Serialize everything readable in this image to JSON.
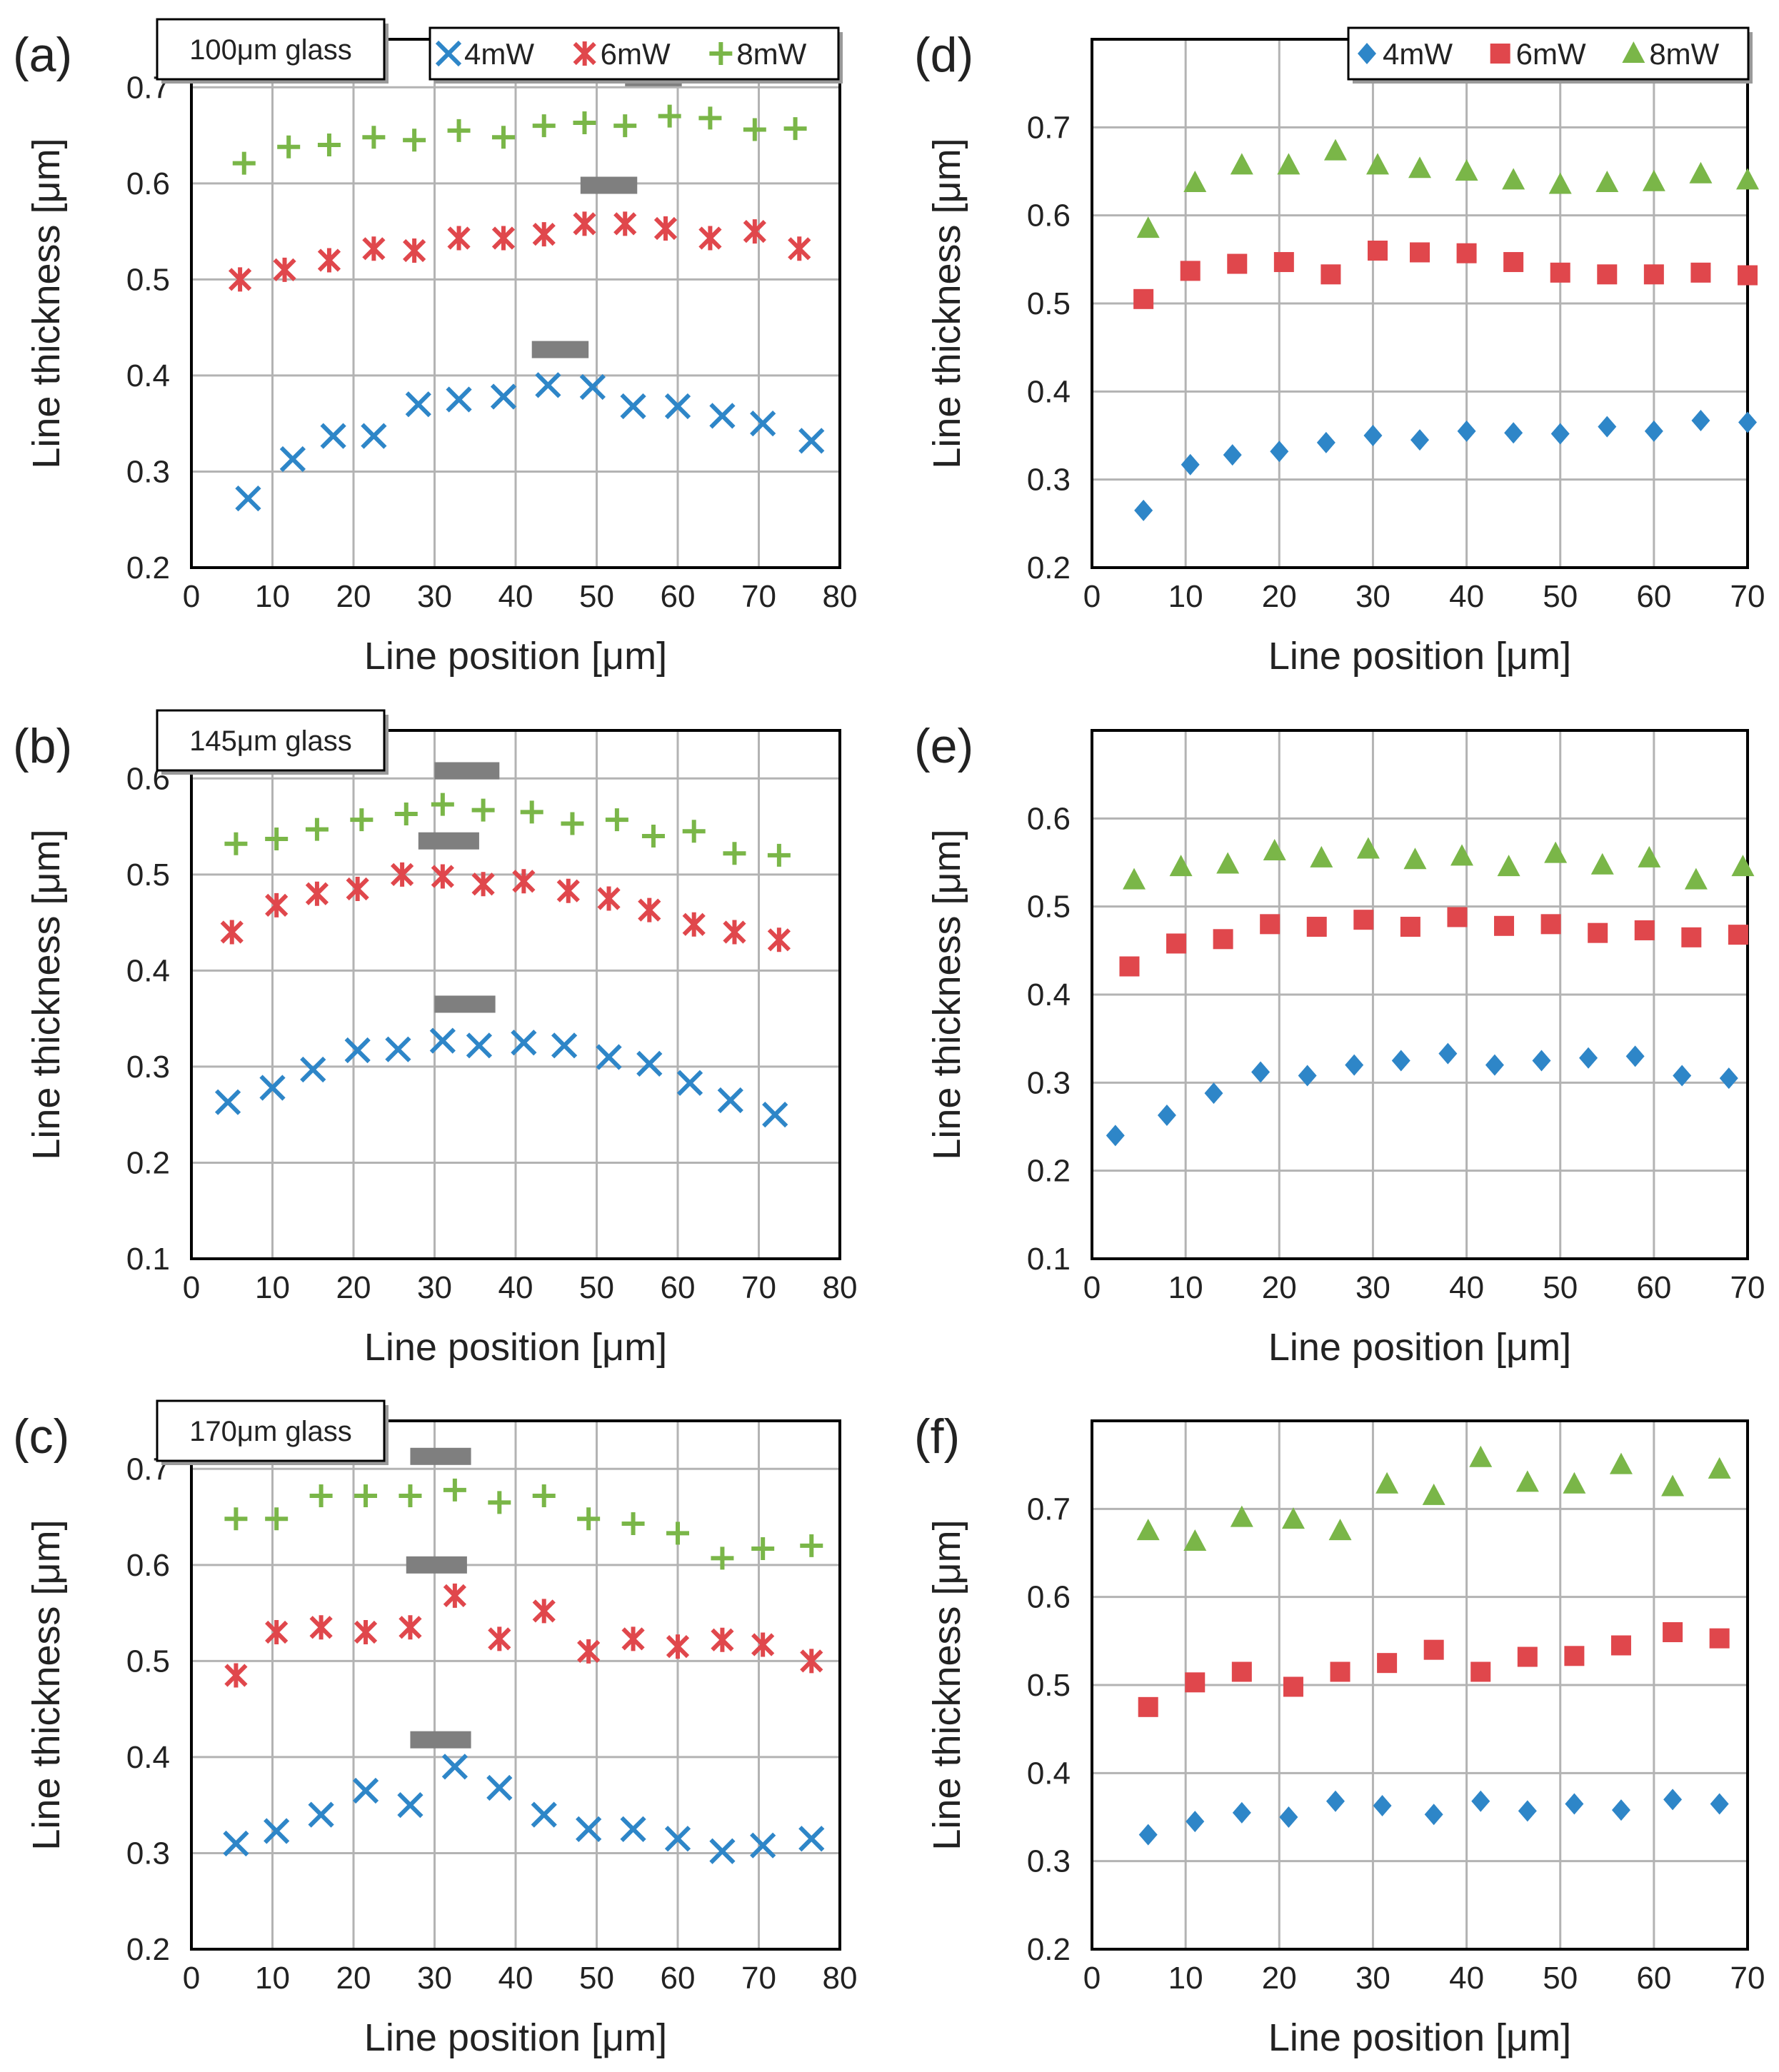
{
  "figure": {
    "colors": {
      "4mW": "#2e86c8",
      "6mW": "#e0474c",
      "8mW": "#7ab648",
      "bar": "#7f7f7f",
      "grid": "#b3b3b3",
      "frame": "#000000"
    },
    "icons": {
      "x_series": "x-marker",
      "star_series": "asterisk-marker",
      "plus_series": "plus-marker",
      "diamond_series": "diamond-marker",
      "square_series": "square-marker",
      "triangle_series": "triangle-marker"
    }
  },
  "chart_data": [
    {
      "id": "a",
      "label": "(a)",
      "type": "scatter",
      "annotation": "100μm glass",
      "xlabel": "Line position [μm]",
      "ylabel": "Line thickness [μm]",
      "xlim": [
        0,
        80
      ],
      "ylim": [
        0.2,
        0.75
      ],
      "grid": true,
      "xticks": [
        0,
        10,
        20,
        30,
        40,
        50,
        60,
        70,
        80
      ],
      "yticks": [
        0.2,
        0.3,
        0.4,
        0.5,
        0.6,
        0.7
      ],
      "xtick_labels": [
        "0",
        "10",
        "20",
        "30",
        "40",
        "50",
        "60",
        "70",
        "80"
      ],
      "ytick_labels": [
        "0.2",
        "0.3",
        "0.4",
        "0.5",
        "0.6",
        "0.7"
      ],
      "legend": {
        "entries": [
          "4mW",
          "6mW",
          "8mW"
        ],
        "position": "top-right"
      },
      "series": [
        {
          "name": "4mW",
          "marker": "x",
          "x": [
            7,
            12.5,
            17.5,
            22.5,
            28,
            33,
            38.5,
            44,
            49.5,
            54.5,
            60,
            65.5,
            70.5,
            76.5
          ],
          "y": [
            0.272,
            0.313,
            0.337,
            0.337,
            0.37,
            0.375,
            0.378,
            0.39,
            0.388,
            0.368,
            0.368,
            0.358,
            0.35,
            0.332
          ]
        },
        {
          "name": "6mW",
          "marker": "star",
          "x": [
            6,
            11.5,
            17,
            22.5,
            27.5,
            33,
            38.5,
            43.5,
            48.5,
            53.5,
            58.5,
            64,
            69.5,
            75
          ],
          "y": [
            0.5,
            0.51,
            0.52,
            0.532,
            0.53,
            0.543,
            0.543,
            0.547,
            0.558,
            0.558,
            0.553,
            0.543,
            0.55,
            0.532
          ]
        },
        {
          "name": "8mW",
          "marker": "plus",
          "x": [
            6.5,
            12,
            17,
            22.5,
            27.5,
            33,
            38.5,
            43.5,
            48.5,
            53.5,
            59,
            64,
            69.5,
            74.5
          ],
          "y": [
            0.621,
            0.638,
            0.64,
            0.648,
            0.645,
            0.655,
            0.648,
            0.66,
            0.663,
            0.66,
            0.67,
            0.668,
            0.656,
            0.657
          ]
        }
      ],
      "bars": [
        {
          "x0": 42,
          "x1": 49,
          "y": 0.427
        },
        {
          "x0": 48,
          "x1": 55,
          "y": 0.598
        },
        {
          "x0": 53.5,
          "x1": 60.5,
          "y": 0.71
        }
      ]
    },
    {
      "id": "b",
      "label": "(b)",
      "type": "scatter",
      "annotation": "145μm glass",
      "xlabel": "Line position [μm]",
      "ylabel": "Line thickness [μm]",
      "xlim": [
        0,
        80
      ],
      "ylim": [
        0.1,
        0.65
      ],
      "grid": true,
      "xticks": [
        0,
        10,
        20,
        30,
        40,
        50,
        60,
        70,
        80
      ],
      "yticks": [
        0.1,
        0.2,
        0.3,
        0.4,
        0.5,
        0.6
      ],
      "xtick_labels": [
        "0",
        "10",
        "20",
        "30",
        "40",
        "50",
        "60",
        "70",
        "80"
      ],
      "ytick_labels": [
        "0.1",
        "0.2",
        "0.3",
        "0.4",
        "0.5",
        "0.6"
      ],
      "series": [
        {
          "name": "4mW",
          "marker": "x",
          "x": [
            4.5,
            10,
            15,
            20.5,
            25.5,
            31,
            35.5,
            41,
            46,
            51.5,
            56.5,
            61.5,
            66.5,
            72
          ],
          "y": [
            0.263,
            0.278,
            0.297,
            0.317,
            0.318,
            0.327,
            0.322,
            0.325,
            0.322,
            0.31,
            0.303,
            0.283,
            0.265,
            0.25
          ]
        },
        {
          "name": "6mW",
          "marker": "star",
          "x": [
            5,
            10.5,
            15.5,
            20.5,
            26,
            31,
            36,
            41,
            46.5,
            51.5,
            56.5,
            62,
            67,
            72.5
          ],
          "y": [
            0.44,
            0.468,
            0.48,
            0.485,
            0.5,
            0.498,
            0.49,
            0.493,
            0.483,
            0.475,
            0.463,
            0.448,
            0.44,
            0.432
          ]
        },
        {
          "name": "8mW",
          "marker": "plus",
          "x": [
            5.5,
            10.5,
            15.5,
            21,
            26.5,
            31,
            36,
            42,
            47,
            52.5,
            57,
            62,
            67,
            72.5
          ],
          "y": [
            0.532,
            0.537,
            0.547,
            0.557,
            0.563,
            0.573,
            0.567,
            0.565,
            0.553,
            0.557,
            0.54,
            0.545,
            0.522,
            0.52
          ]
        }
      ],
      "bars": [
        {
          "x0": 30,
          "x1": 37.5,
          "y": 0.365
        },
        {
          "x0": 28,
          "x1": 35.5,
          "y": 0.535
        },
        {
          "x0": 30,
          "x1": 38,
          "y": 0.608
        }
      ]
    },
    {
      "id": "c",
      "label": "(c)",
      "type": "scatter",
      "annotation": "170μm glass",
      "xlabel": "Line position [μm]",
      "ylabel": "Line thickness [μm]",
      "xlim": [
        0,
        80
      ],
      "ylim": [
        0.2,
        0.75
      ],
      "grid": true,
      "xticks": [
        0,
        10,
        20,
        30,
        40,
        50,
        60,
        70,
        80
      ],
      "yticks": [
        0.2,
        0.3,
        0.4,
        0.5,
        0.6,
        0.7
      ],
      "xtick_labels": [
        "0",
        "10",
        "20",
        "30",
        "40",
        "50",
        "60",
        "70",
        "80"
      ],
      "ytick_labels": [
        "0.2",
        "0.3",
        "0.4",
        "0.5",
        "0.6",
        "0.7"
      ],
      "series": [
        {
          "name": "4mW",
          "marker": "x",
          "x": [
            5.5,
            10.5,
            16,
            21.5,
            27,
            32.5,
            38,
            43.5,
            49,
            54.5,
            60,
            65.5,
            70.5,
            76.5
          ],
          "y": [
            0.31,
            0.323,
            0.34,
            0.365,
            0.35,
            0.39,
            0.368,
            0.34,
            0.325,
            0.325,
            0.315,
            0.302,
            0.308,
            0.315
          ]
        },
        {
          "name": "6mW",
          "marker": "star",
          "x": [
            5.5,
            10.5,
            16,
            21.5,
            27,
            32.5,
            38,
            43.5,
            49,
            54.5,
            60,
            65.5,
            70.5,
            76.5
          ],
          "y": [
            0.485,
            0.53,
            0.535,
            0.53,
            0.535,
            0.568,
            0.523,
            0.552,
            0.51,
            0.523,
            0.515,
            0.522,
            0.517,
            0.5
          ]
        },
        {
          "name": "8mW",
          "marker": "plus",
          "x": [
            5.5,
            10.5,
            16,
            21.5,
            27,
            32.5,
            38,
            43.5,
            49,
            54.5,
            60,
            65.5,
            70.5,
            76.5
          ],
          "y": [
            0.648,
            0.648,
            0.672,
            0.672,
            0.672,
            0.678,
            0.665,
            0.672,
            0.648,
            0.643,
            0.633,
            0.607,
            0.617,
            0.62
          ]
        }
      ],
      "bars": [
        {
          "x0": 27,
          "x1": 34.5,
          "y": 0.418
        },
        {
          "x0": 26.5,
          "x1": 34,
          "y": 0.6
        },
        {
          "x0": 27,
          "x1": 34.5,
          "y": 0.713
        }
      ]
    },
    {
      "id": "d",
      "label": "(d)",
      "type": "scatter",
      "xlabel": "Line position [μm]",
      "ylabel": "Line thickness [μm]",
      "xlim": [
        0,
        70
      ],
      "ylim": [
        0.2,
        0.8
      ],
      "grid": true,
      "xticks": [
        0,
        10,
        20,
        30,
        40,
        50,
        60,
        70
      ],
      "yticks": [
        0.2,
        0.3,
        0.4,
        0.5,
        0.6,
        0.7
      ],
      "xtick_labels": [
        "0",
        "10",
        "20",
        "30",
        "40",
        "50",
        "60",
        "70"
      ],
      "ytick_labels": [
        "0.2",
        "0.3",
        "0.4",
        "0.5",
        "0.6",
        "0.7"
      ],
      "legend": {
        "entries": [
          "4mW",
          "6mW",
          "8mW"
        ],
        "position": "top-right"
      },
      "series": [
        {
          "name": "4mW",
          "marker": "diamond",
          "x": [
            5.5,
            10.5,
            15,
            20,
            25,
            30,
            35,
            40,
            45,
            50,
            55,
            60,
            65,
            70
          ],
          "y": [
            0.265,
            0.317,
            0.328,
            0.332,
            0.342,
            0.35,
            0.345,
            0.355,
            0.353,
            0.352,
            0.36,
            0.355,
            0.367,
            0.365
          ]
        },
        {
          "name": "6mW",
          "marker": "square",
          "x": [
            5.5,
            10.5,
            15.5,
            20.5,
            25.5,
            30.5,
            35,
            40,
            45,
            50,
            55,
            60,
            65,
            70
          ],
          "y": [
            0.505,
            0.537,
            0.545,
            0.547,
            0.533,
            0.56,
            0.558,
            0.557,
            0.547,
            0.535,
            0.533,
            0.533,
            0.535,
            0.532
          ]
        },
        {
          "name": "8mW",
          "marker": "triangle",
          "x": [
            6,
            11,
            16,
            21,
            26,
            30.5,
            35,
            40,
            45,
            50,
            55,
            60,
            65,
            70
          ],
          "y": [
            0.585,
            0.637,
            0.657,
            0.657,
            0.673,
            0.657,
            0.653,
            0.65,
            0.64,
            0.635,
            0.637,
            0.638,
            0.647,
            0.64
          ]
        }
      ]
    },
    {
      "id": "e",
      "label": "(e)",
      "type": "scatter",
      "xlabel": "Line position [μm]",
      "ylabel": "Line thickness [μm]",
      "xlim": [
        0,
        70
      ],
      "ylim": [
        0.1,
        0.7
      ],
      "grid": true,
      "xticks": [
        0,
        10,
        20,
        30,
        40,
        50,
        60,
        70
      ],
      "yticks": [
        0.1,
        0.2,
        0.3,
        0.4,
        0.5,
        0.6
      ],
      "xtick_labels": [
        "0",
        "10",
        "20",
        "30",
        "40",
        "50",
        "60",
        "70"
      ],
      "ytick_labels": [
        "0.1",
        "0.2",
        "0.3",
        "0.4",
        "0.5",
        "0.6"
      ],
      "series": [
        {
          "name": "4mW",
          "marker": "diamond",
          "x": [
            2.5,
            8,
            13,
            18,
            23,
            28,
            33,
            38,
            43,
            48,
            53,
            58,
            63,
            68
          ],
          "y": [
            0.24,
            0.263,
            0.288,
            0.312,
            0.308,
            0.32,
            0.325,
            0.333,
            0.32,
            0.325,
            0.328,
            0.33,
            0.308,
            0.305
          ]
        },
        {
          "name": "6mW",
          "marker": "square",
          "x": [
            4,
            9,
            14,
            19,
            24,
            29,
            34,
            39,
            44,
            49,
            54,
            59,
            64,
            69
          ],
          "y": [
            0.432,
            0.458,
            0.463,
            0.48,
            0.477,
            0.485,
            0.477,
            0.488,
            0.478,
            0.48,
            0.47,
            0.473,
            0.465,
            0.468
          ]
        },
        {
          "name": "8mW",
          "marker": "triangle",
          "x": [
            4.5,
            9.5,
            14.5,
            19.5,
            24.5,
            29.5,
            34.5,
            39.5,
            44.5,
            49.5,
            54.5,
            59.5,
            64.5,
            69.5
          ],
          "y": [
            0.53,
            0.545,
            0.548,
            0.563,
            0.555,
            0.565,
            0.553,
            0.557,
            0.545,
            0.56,
            0.547,
            0.555,
            0.53,
            0.545
          ]
        }
      ]
    },
    {
      "id": "f",
      "label": "(f)",
      "type": "scatter",
      "xlabel": "Line position [μm]",
      "ylabel": "Line thickness [μm]",
      "xlim": [
        0,
        70
      ],
      "ylim": [
        0.2,
        0.8
      ],
      "grid": true,
      "xticks": [
        0,
        10,
        20,
        30,
        40,
        50,
        60,
        70
      ],
      "yticks": [
        0.2,
        0.3,
        0.4,
        0.5,
        0.6,
        0.7
      ],
      "xtick_labels": [
        "0",
        "10",
        "20",
        "30",
        "40",
        "50",
        "60",
        "70"
      ],
      "ytick_labels": [
        "0.2",
        "0.3",
        "0.4",
        "0.5",
        "0.6",
        "0.7"
      ],
      "series": [
        {
          "name": "4mW",
          "marker": "diamond",
          "x": [
            6,
            11,
            16,
            21,
            26,
            31,
            36.5,
            41.5,
            46.5,
            51.5,
            56.5,
            62,
            67
          ],
          "y": [
            0.33,
            0.345,
            0.355,
            0.35,
            0.368,
            0.363,
            0.353,
            0.368,
            0.357,
            0.365,
            0.358,
            0.37,
            0.365
          ]
        },
        {
          "name": "6mW",
          "marker": "square",
          "x": [
            6,
            11,
            16,
            21.5,
            26.5,
            31.5,
            36.5,
            41.5,
            46.5,
            51.5,
            56.5,
            62,
            67
          ],
          "y": [
            0.475,
            0.503,
            0.515,
            0.498,
            0.515,
            0.525,
            0.54,
            0.515,
            0.532,
            0.533,
            0.545,
            0.56,
            0.553
          ]
        },
        {
          "name": "8mW",
          "marker": "triangle",
          "x": [
            6,
            11,
            16,
            21.5,
            26.5,
            31.5,
            36.5,
            41.5,
            46.5,
            51.5,
            56.5,
            62,
            67
          ],
          "y": [
            0.675,
            0.663,
            0.69,
            0.688,
            0.675,
            0.728,
            0.715,
            0.758,
            0.73,
            0.728,
            0.75,
            0.725,
            0.745
          ]
        }
      ]
    }
  ]
}
